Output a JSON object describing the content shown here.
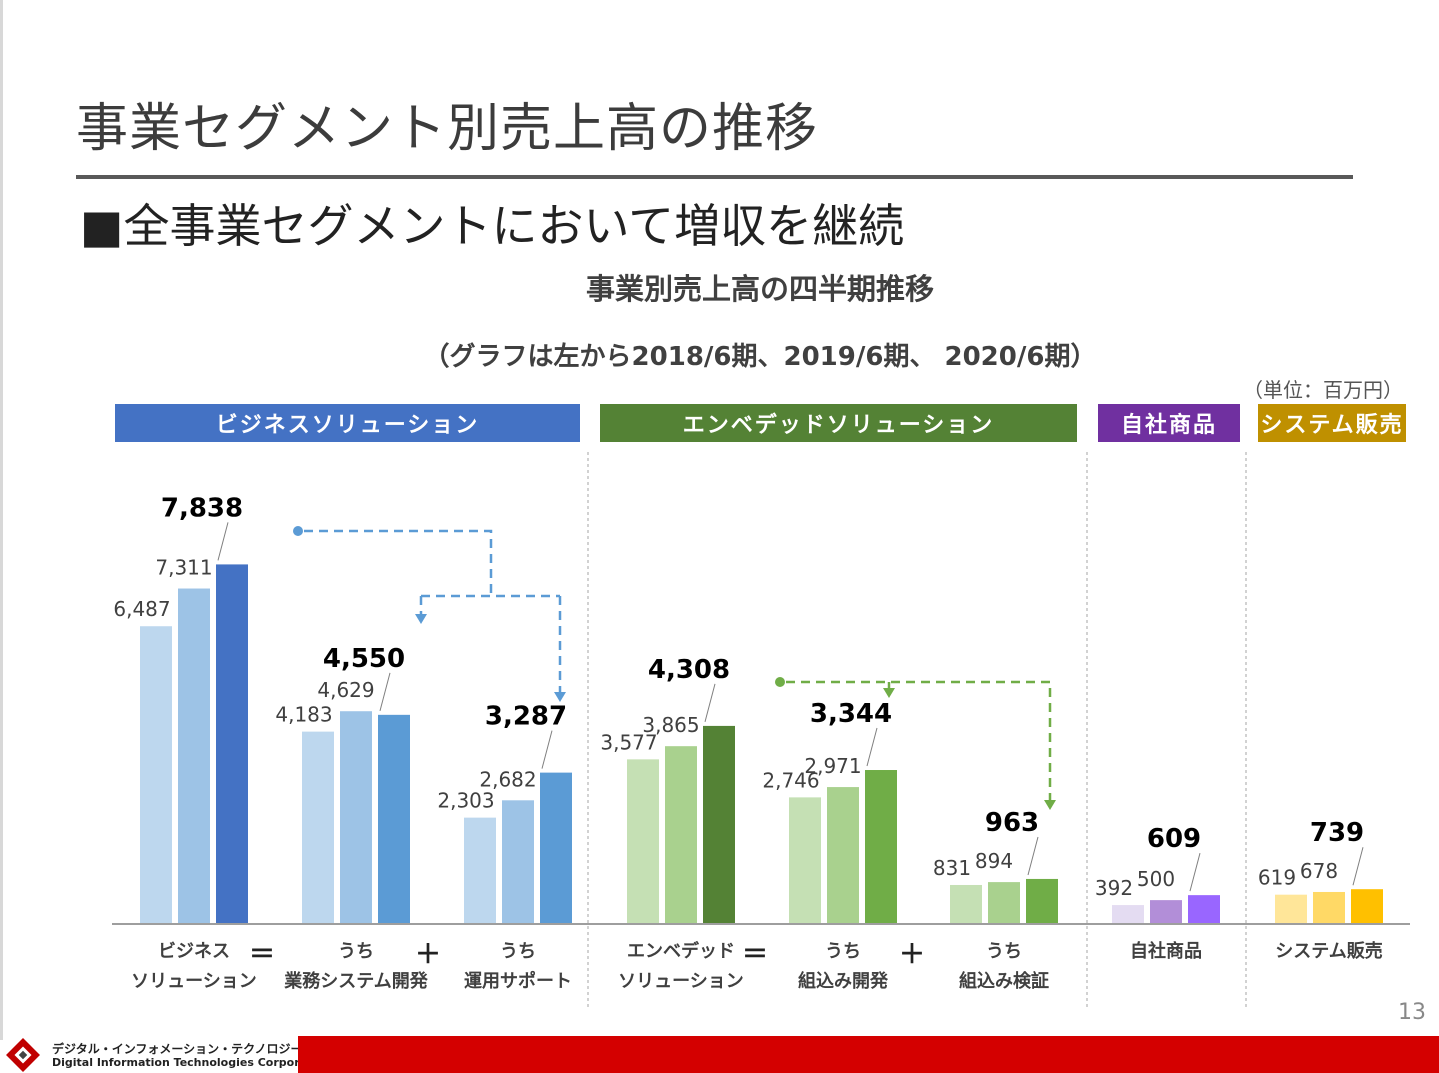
{
  "slide": {
    "title": "事業セグメント別売上高の推移",
    "subtitle": "■全事業セグメントにおいて増収を継続",
    "page_number": "13"
  },
  "footer": {
    "company_jp": "デジタル・インフォメーション・テクノロジー株式会社",
    "company_en": "Digital Information Technologies Corporation",
    "accent_color": "#d40000"
  },
  "chart_data": {
    "type": "bar",
    "title": "事業別売上高の四半期推移",
    "note": "（グラフは左から2018/6期、2019/6期、 2020/6期）",
    "unit": "（単位：百万円）",
    "periods": [
      "2018/6期",
      "2019/6期",
      "2020/6期"
    ],
    "ylim": [
      0,
      9000
    ],
    "segments": [
      {
        "label": "ビジネスソリューション",
        "color": "#4472c4"
      },
      {
        "label": "エンベデッドソリューション",
        "color": "#548235"
      },
      {
        "label": "自社商品",
        "color": "#7030a0"
      },
      {
        "label": "システム販売",
        "color": "#bf9000"
      }
    ],
    "groups": [
      {
        "label": [
          "ビジネス",
          "ソリューション"
        ],
        "values": [
          6487,
          7311,
          7838
        ],
        "value_labels": [
          "6,487",
          "7,311",
          "7,838"
        ],
        "colors": [
          "#bdd7ee",
          "#9dc3e6",
          "#4472c4"
        ]
      },
      {
        "label": [
          "うち",
          "業務システム開発"
        ],
        "values": [
          4183,
          4629,
          4550
        ],
        "value_labels": [
          "4,183",
          "4,629",
          "4,550"
        ],
        "colors": [
          "#bdd7ee",
          "#9dc3e6",
          "#5b9bd5"
        ]
      },
      {
        "label": [
          "うち",
          "運用サポート"
        ],
        "values": [
          2303,
          2682,
          3287
        ],
        "value_labels": [
          "2,303",
          "2,682",
          "3,287"
        ],
        "colors": [
          "#bdd7ee",
          "#9dc3e6",
          "#5b9bd5"
        ]
      },
      {
        "label": [
          "エンベデッド",
          "ソリューション"
        ],
        "values": [
          3577,
          3865,
          4308
        ],
        "value_labels": [
          "3,577",
          "3,865",
          "4,308"
        ],
        "colors": [
          "#c5e0b4",
          "#a9d18e",
          "#548235"
        ]
      },
      {
        "label": [
          "うち",
          "組込み開発"
        ],
        "values": [
          2746,
          2971,
          3344
        ],
        "value_labels": [
          "2,746",
          "2,971",
          "3,344"
        ],
        "colors": [
          "#c5e0b4",
          "#a9d18e",
          "#70ad47"
        ]
      },
      {
        "label": [
          "うち",
          "組込み検証"
        ],
        "values": [
          831,
          894,
          963
        ],
        "value_labels": [
          "831",
          "894",
          "963"
        ],
        "colors": [
          "#c5e0b4",
          "#a9d18e",
          "#70ad47"
        ]
      },
      {
        "label": [
          "自社商品"
        ],
        "values": [
          392,
          500,
          609
        ],
        "value_labels": [
          "392",
          "500",
          "609"
        ],
        "colors": [
          "#e4dcf2",
          "#b28ed8",
          "#9966ff"
        ]
      },
      {
        "label": [
          "システム販売"
        ],
        "values": [
          619,
          678,
          739
        ],
        "value_labels": [
          "619",
          "678",
          "739"
        ],
        "colors": [
          "#ffe699",
          "#ffd966",
          "#ffc000"
        ]
      }
    ],
    "operators": [
      "＝",
      "＋",
      "＝",
      "＋"
    ],
    "connector_colors": [
      "#5b9bd5",
      "#70ad47"
    ]
  }
}
